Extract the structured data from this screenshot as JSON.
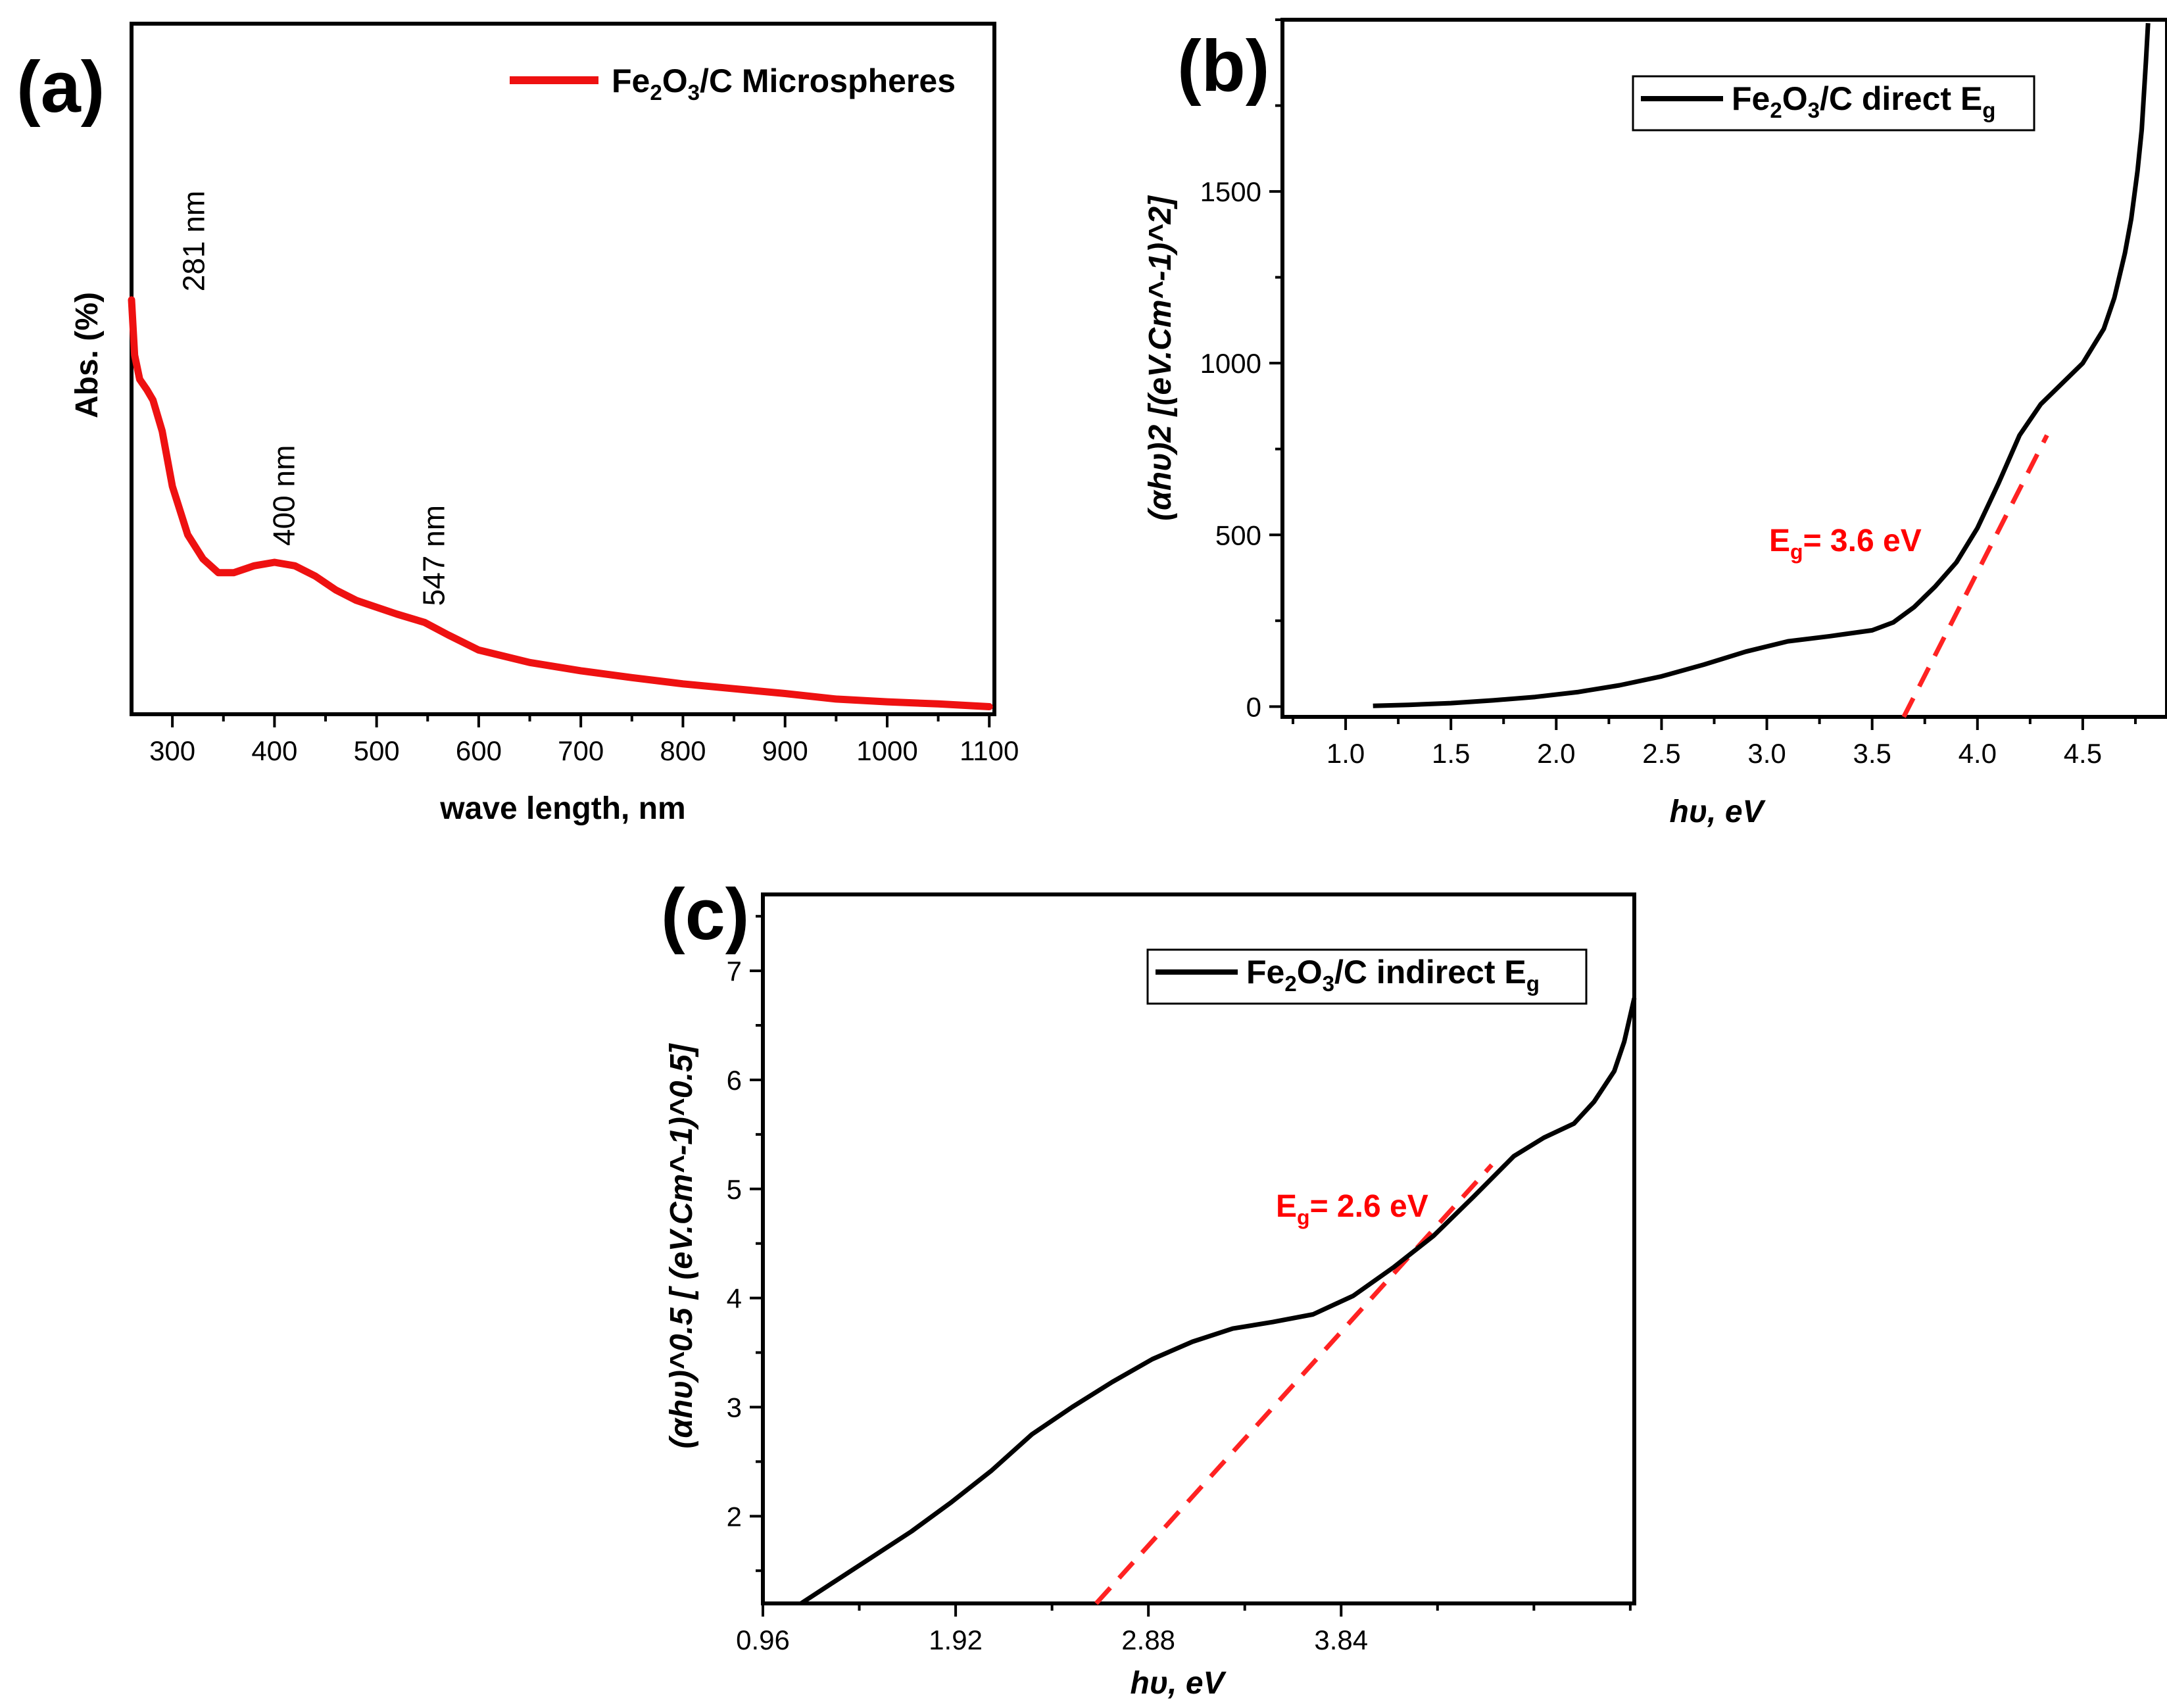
{
  "chart_data": [
    {
      "type": "line",
      "panel_label": "(a)",
      "xlabel": "wave length, nm",
      "ylabel": "Abs. (%)",
      "xlim": [
        260,
        1105
      ],
      "ylim": [
        0,
        100
      ],
      "xticks": [
        300,
        400,
        500,
        600,
        700,
        800,
        900,
        1000,
        1100
      ],
      "xtick_labels": [
        "300",
        "400",
        "500",
        "600",
        "700",
        "800",
        "900",
        "1000",
        "1100"
      ],
      "legend": {
        "base": "Fe",
        "sub1": "2",
        "mid": "O",
        "sub2": "3",
        "tail": "/C Microspheres",
        "position": "top-right"
      },
      "series": [
        {
          "name": "Fe2O3/C Microspheres",
          "color": "#ee1111",
          "x": [
            260,
            263,
            268,
            275,
            281,
            290,
            300,
            315,
            330,
            345,
            360,
            380,
            400,
            420,
            440,
            460,
            480,
            500,
            520,
            547,
            570,
            600,
            650,
            700,
            750,
            800,
            850,
            900,
            950,
            1000,
            1050,
            1100
          ],
          "y": [
            60,
            52,
            48.5,
            47,
            45.5,
            41,
            33,
            26,
            22.5,
            20.5,
            20.5,
            21.5,
            22,
            21.5,
            20,
            18,
            16.5,
            15.5,
            14.5,
            13.3,
            11.5,
            9.3,
            7.5,
            6.3,
            5.3,
            4.4,
            3.7,
            3,
            2.2,
            1.8,
            1.5,
            1.1
          ]
        }
      ],
      "annotations": [
        {
          "text": "281 nm",
          "x": 281
        },
        {
          "text": "400 nm",
          "x": 400
        },
        {
          "text": "547 nm",
          "x": 547
        }
      ]
    },
    {
      "type": "line",
      "panel_label": "(b)",
      "xlabel": "hυ, eV",
      "ylabel": "(αhυ)2 [(eV.Cm^-1)^2]",
      "xlim": [
        0.7,
        4.9
      ],
      "ylim": [
        -30,
        2000
      ],
      "xticks": [
        1.0,
        1.5,
        2.0,
        2.5,
        3.0,
        3.5,
        4.0,
        4.5
      ],
      "xtick_labels": [
        "1.0",
        "1.5",
        "2.0",
        "2.5",
        "3.0",
        "3.5",
        "4.0",
        "4.5"
      ],
      "yticks": [
        0,
        500,
        1000,
        1500
      ],
      "ytick_labels": [
        "0",
        "500",
        "1000",
        "1500"
      ],
      "legend": {
        "base": "Fe",
        "sub1": "2",
        "mid": "O",
        "sub2": "3",
        "tail": "/C direct E",
        "sub3": "g",
        "position": "top-center"
      },
      "series": [
        {
          "name": "Fe2O3/C direct Eg",
          "color": "#000000",
          "x": [
            1.13,
            1.3,
            1.5,
            1.7,
            1.9,
            2.1,
            2.3,
            2.5,
            2.7,
            2.9,
            3.1,
            3.3,
            3.5,
            3.6,
            3.7,
            3.8,
            3.9,
            4.0,
            4.1,
            4.2,
            4.3,
            4.4,
            4.5,
            4.6,
            4.65,
            4.7,
            4.73,
            4.76,
            4.78,
            4.8,
            4.81
          ],
          "y": [
            2,
            5,
            10,
            18,
            28,
            42,
            62,
            88,
            122,
            160,
            190,
            205,
            222,
            245,
            290,
            350,
            420,
            520,
            650,
            790,
            880,
            940,
            1000,
            1100,
            1190,
            1320,
            1420,
            1560,
            1680,
            1880,
            1990
          ]
        },
        {
          "name": "direct fit",
          "color": "#ff2222",
          "dashed": true,
          "x": [
            3.65,
            4.33
          ],
          "y": [
            -30,
            790
          ]
        }
      ],
      "annotations": [
        {
          "text": "E",
          "sub": "g",
          "tail": "= 3.6 eV"
        }
      ]
    },
    {
      "type": "line",
      "panel_label": "(c)",
      "xlabel": "hυ, eV",
      "ylabel": "(αhυ)^0.5 [ (eV.Cm^-1)^0.5]",
      "xlim": [
        0.96,
        5.3
      ],
      "ylim": [
        1.2,
        7.7
      ],
      "xticks": [
        0.96,
        1.92,
        2.88,
        3.84
      ],
      "xtick_labels": [
        "0.96",
        "1.92",
        "2.88",
        "3.84"
      ],
      "yticks": [
        2,
        3,
        4,
        5,
        6,
        7
      ],
      "ytick_labels": [
        "2",
        "3",
        "4",
        "5",
        "6",
        "7"
      ],
      "legend": {
        "base": "Fe",
        "sub1": "2",
        "mid": "O",
        "sub2": "3",
        "tail": "/C indirect E",
        "sub3": "g",
        "position": "top-right"
      },
      "series": [
        {
          "name": "Fe2O3/C indirect Eg",
          "color": "#000000",
          "x": [
            1.15,
            1.3,
            1.5,
            1.7,
            1.9,
            2.1,
            2.3,
            2.5,
            2.7,
            2.9,
            3.1,
            3.3,
            3.5,
            3.7,
            3.9,
            4.1,
            4.3,
            4.5,
            4.7,
            4.85,
            5.0,
            5.1,
            5.2,
            5.25,
            5.3
          ],
          "y": [
            1.2,
            1.38,
            1.62,
            1.86,
            2.13,
            2.42,
            2.75,
            3.0,
            3.23,
            3.44,
            3.6,
            3.72,
            3.78,
            3.85,
            4.02,
            4.28,
            4.57,
            4.93,
            5.3,
            5.47,
            5.6,
            5.8,
            6.08,
            6.35,
            6.75
          ]
        },
        {
          "name": "indirect fit",
          "color": "#ff2222",
          "dashed": true,
          "x": [
            2.62,
            4.59
          ],
          "y": [
            1.2,
            5.22
          ]
        }
      ],
      "annotations": [
        {
          "text": "E",
          "sub": "g",
          "tail": "= 2.6 eV"
        }
      ]
    }
  ]
}
